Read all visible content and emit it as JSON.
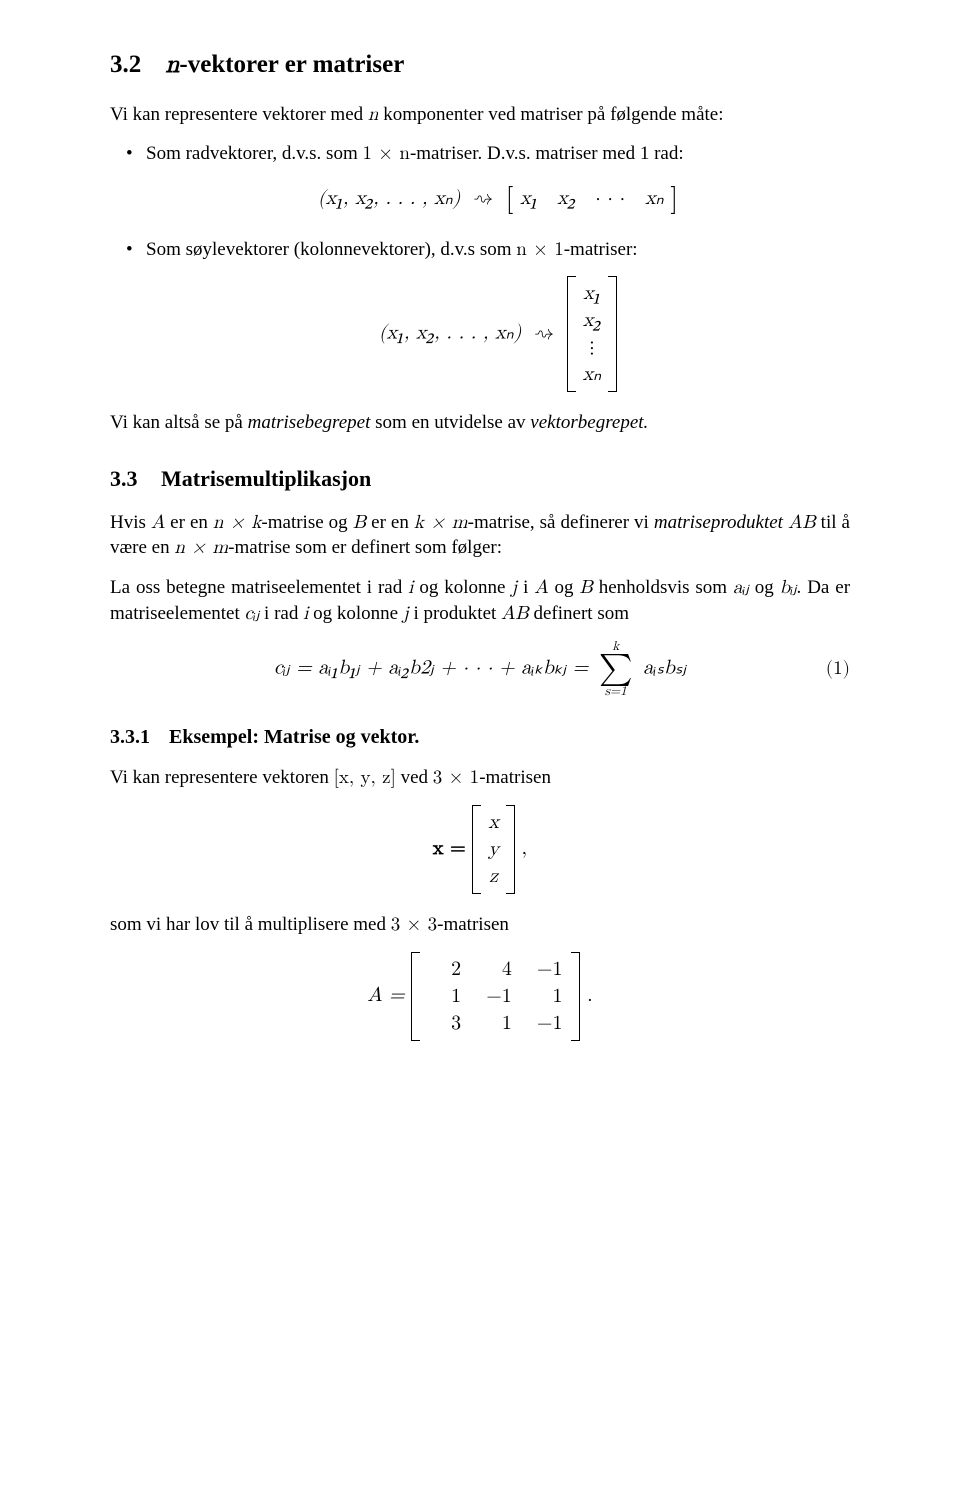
{
  "section32": {
    "number": "3.2",
    "title_pre": "n",
    "title_post": "-vektorer er matriser",
    "p1_a": "Vi kan representere vektorer med ",
    "p1_n": "n",
    "p1_b": " komponenter ved matriser på følgende måte:",
    "li1_a": "Som radvektorer, d.v.s. som ",
    "li1_b": "-matriser. D.v.s. matriser med 1 rad:",
    "li1_dim": "1 × n",
    "row_map_lhs": "(x₁, x₂, . . . , xₙ)",
    "row_map_arrow": "⇝",
    "row_map_open": "[",
    "row_map_x1": "x₁",
    "row_map_x2": "x₂",
    "row_map_dots": "· · ·",
    "row_map_xn": "xₙ",
    "row_map_close": "]",
    "li2_a": "Som søylevektorer (kolonnevektorer), d.v.s som ",
    "li2_b": "-matriser:",
    "li2_dim": "n × 1",
    "col_map_lhs": "(x₁, x₂, . . . , xₙ)",
    "col_map_arrow": "⇝",
    "col_x1": "x₁",
    "col_x2": "x₂",
    "col_vdots": "⋮",
    "col_xn": "xₙ",
    "p2_a": "Vi kan altså se på ",
    "p2_b": "matrisebegrepet",
    "p2_c": " som en utvidelse av ",
    "p2_d": "vektorbegrepet."
  },
  "section33": {
    "number": "3.3",
    "title": "Matrisemultiplikasjon",
    "p1_a": "Hvis ",
    "p1_A": "A",
    "p1_b": " er en ",
    "p1_nk": "n × k",
    "p1_c": "-matrise og ",
    "p1_B": "B",
    "p1_d": " er en ",
    "p1_km": "k × m",
    "p1_e": "-matrise, så definerer vi ",
    "p1_f": "matriseproduktet ",
    "p1_AB": "AB",
    "p1_g": " til å være en ",
    "p1_nm": "n × m",
    "p1_h": "-matrise som er definert som følger:",
    "p2_a": "La oss betegne matriseelementet i rad ",
    "p2_i": "i",
    "p2_b": " og kolonne ",
    "p2_j": "j",
    "p2_c": " i ",
    "p2_A": "A",
    "p2_d": " og ",
    "p2_B": "B",
    "p2_e": " henholdsvis som ",
    "p2_aij": "aᵢⱼ",
    "p2_f": " og ",
    "p2_bij": "bᵢⱼ",
    "p2_g": ". Da er matriseelementet ",
    "p2_cij": "cᵢⱼ",
    "p2_h": " i rad ",
    "p2_i2": "i",
    "p2_k": " og kolonne ",
    "p2_j2": "j",
    "p2_l": " i produktet ",
    "p2_AB": "AB",
    "p2_m": " definert som",
    "eq1_lhs": "cᵢⱼ = aᵢ₁b₁ⱼ + aᵢ₂b2ⱼ + · · · + aᵢₖbₖⱼ = ",
    "eq1_sum_top": "k",
    "eq1_sum_bot": "s=1",
    "eq1_rhs": " aᵢₛbₛⱼ",
    "eq1_num": "(1)"
  },
  "section331": {
    "number": "3.3.1",
    "title": "Eksempel: Matrise og vektor.",
    "p1_a": "Vi kan representere vektoren ",
    "p1_vec": "[x, y, z]",
    "p1_b": " ved ",
    "p1_dim": "3 × 1",
    "p1_c": "-matrisen",
    "xvec_label": "x = ",
    "xvec_x": "x",
    "xvec_y": "y",
    "xvec_z": "z",
    "xvec_comma": ",",
    "p2_a": "som vi har lov til å multiplisere med ",
    "p2_dim": "3 × 3",
    "p2_b": "-matrisen",
    "A_label": "A = ",
    "A_row1": [
      "2",
      "4",
      "−1"
    ],
    "A_row2": [
      "1",
      "−1",
      "1"
    ],
    "A_row3": [
      "3",
      "1",
      "−1"
    ],
    "A_period": "."
  }
}
